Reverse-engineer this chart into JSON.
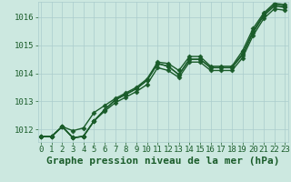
{
  "title": "Graphe pression niveau de la mer (hPa)",
  "xlabel_ticks": [
    0,
    1,
    2,
    3,
    4,
    5,
    6,
    7,
    8,
    9,
    10,
    11,
    12,
    13,
    14,
    15,
    16,
    17,
    18,
    19,
    20,
    21,
    22,
    23
  ],
  "ylim": [
    1011.55,
    1016.55
  ],
  "xlim": [
    -0.3,
    23.3
  ],
  "yticks": [
    1012,
    1013,
    1014,
    1015,
    1016
  ],
  "background_color": "#cce8e0",
  "grid_color": "#aacccc",
  "line_color": "#1a5c2a",
  "line_width": 1.0,
  "marker": "D",
  "marker_size": 2.5,
  "series": [
    [
      1011.75,
      1011.75,
      1012.1,
      1011.7,
      1011.75,
      1012.3,
      1012.7,
      1013.05,
      1013.25,
      1013.45,
      1013.75,
      1014.35,
      1014.25,
      1013.95,
      1014.5,
      1014.5,
      1014.2,
      1014.2,
      1014.2,
      1014.7,
      1015.5,
      1016.1,
      1016.45,
      1016.4
    ],
    [
      1011.75,
      1011.75,
      1012.1,
      1011.7,
      1011.75,
      1012.3,
      1012.7,
      1013.05,
      1013.25,
      1013.45,
      1013.75,
      1014.35,
      1014.25,
      1013.95,
      1014.5,
      1014.5,
      1014.2,
      1014.2,
      1014.2,
      1014.65,
      1015.45,
      1016.05,
      1016.4,
      1016.35
    ],
    [
      1011.75,
      1011.75,
      1012.1,
      1011.95,
      1012.05,
      1012.6,
      1012.85,
      1013.1,
      1013.3,
      1013.5,
      1013.8,
      1014.4,
      1014.35,
      1014.1,
      1014.6,
      1014.6,
      1014.25,
      1014.25,
      1014.25,
      1014.8,
      1015.6,
      1016.15,
      1016.5,
      1016.45
    ],
    [
      1011.75,
      1011.75,
      1012.1,
      1011.7,
      1011.75,
      1012.3,
      1012.65,
      1012.95,
      1013.15,
      1013.35,
      1013.6,
      1014.2,
      1014.1,
      1013.85,
      1014.4,
      1014.4,
      1014.1,
      1014.1,
      1014.1,
      1014.55,
      1015.35,
      1015.95,
      1016.3,
      1016.25
    ]
  ],
  "title_fontsize": 8,
  "tick_fontsize": 6.5,
  "tick_color": "#1a5c2a",
  "label_color": "#1a5c2a"
}
